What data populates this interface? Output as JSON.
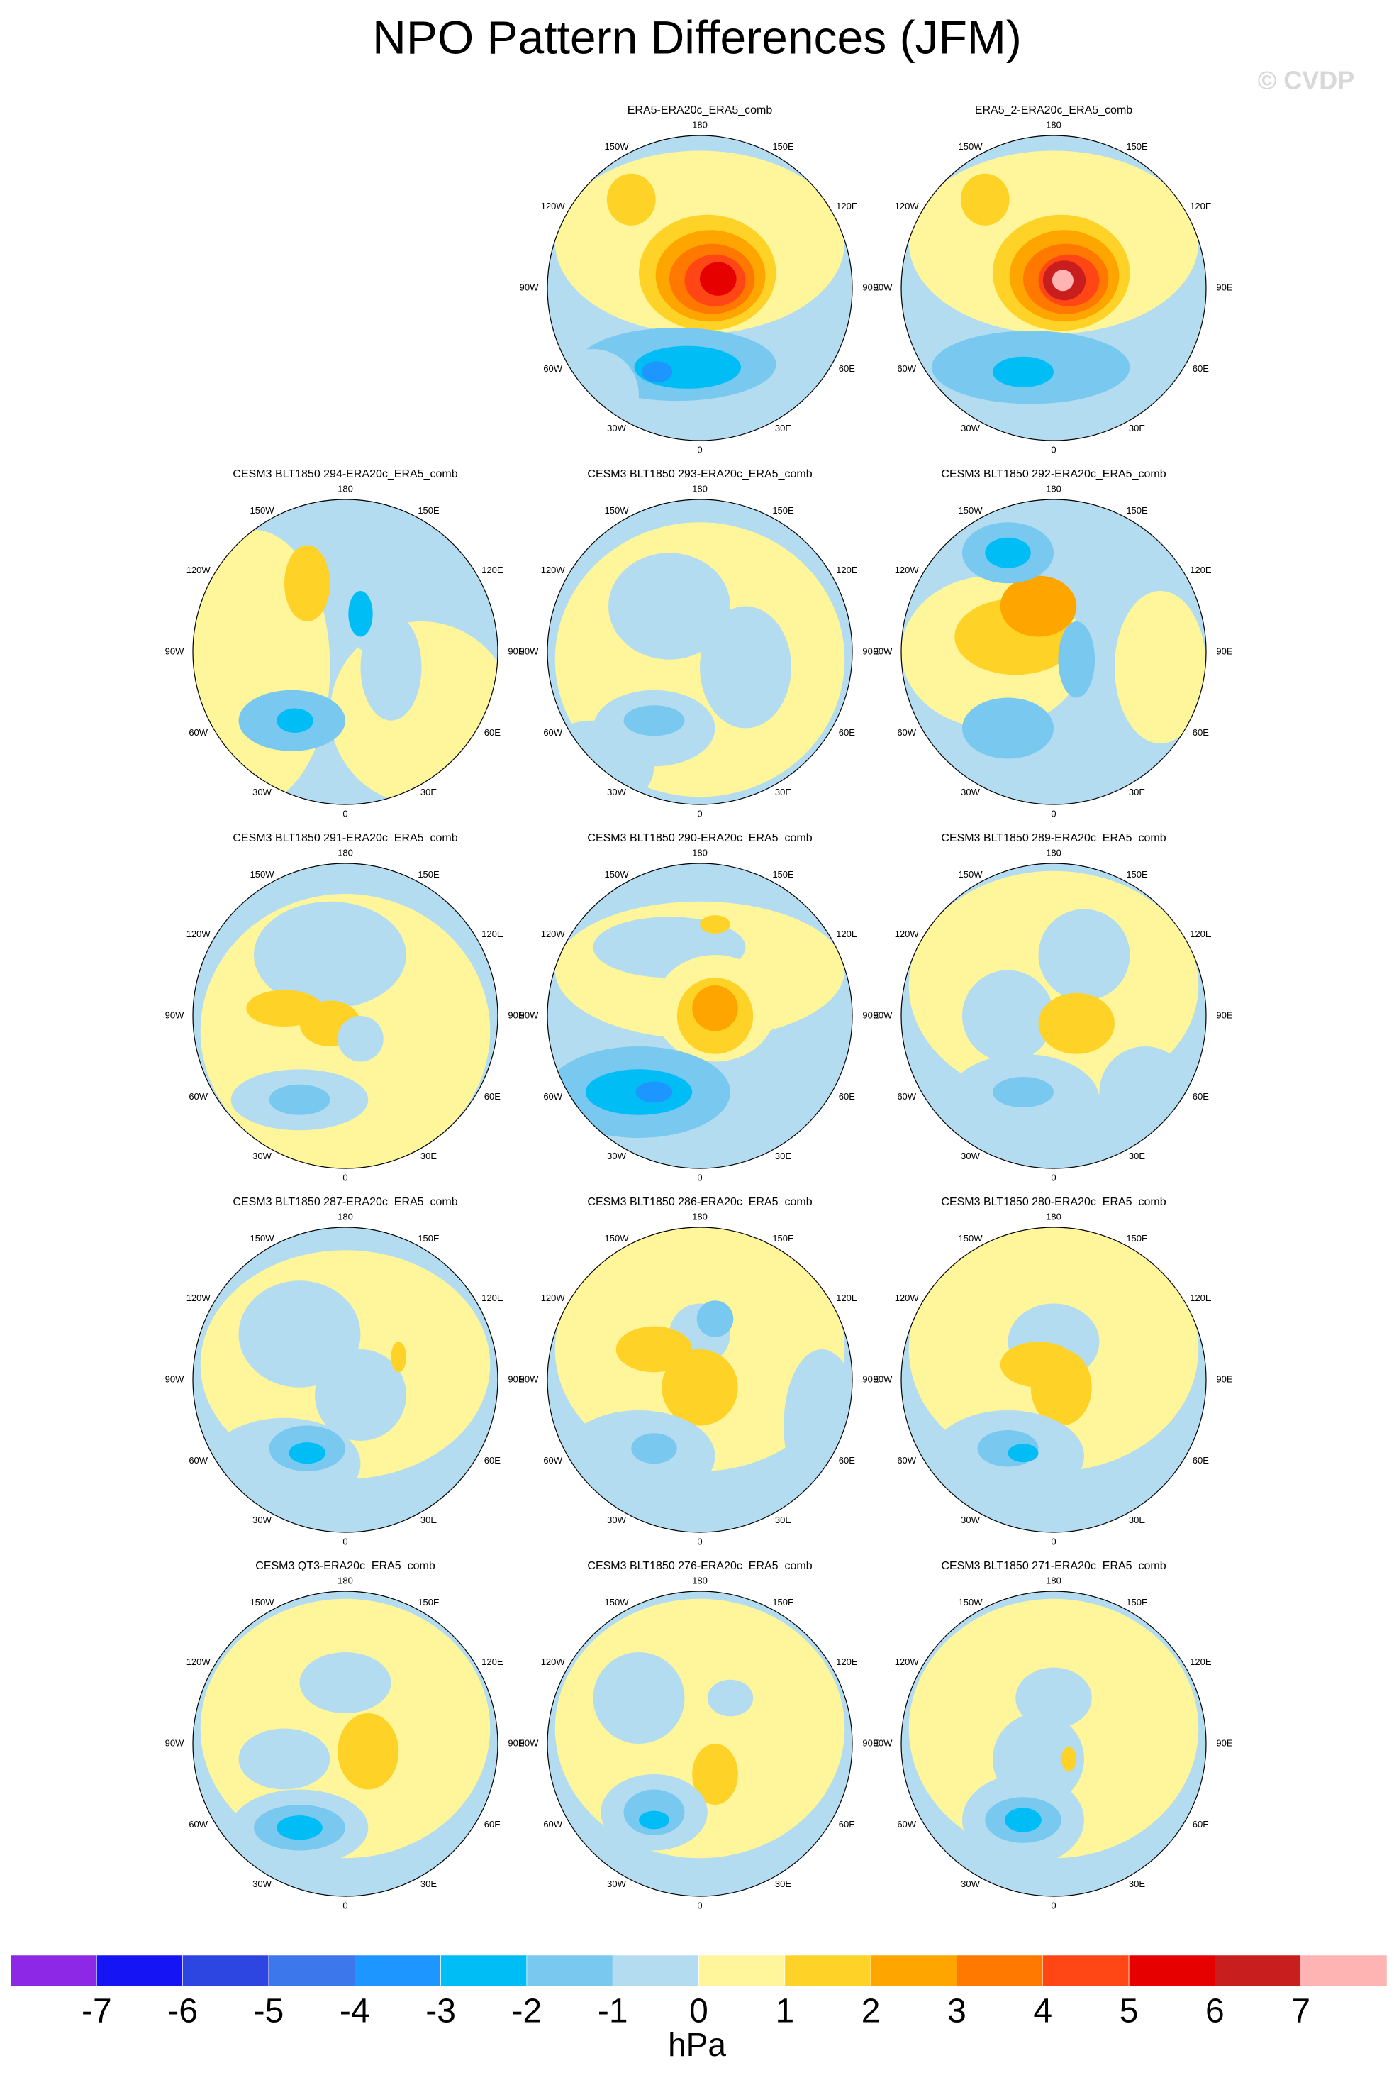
{
  "title": "NPO Pattern Differences (JFM)",
  "watermark": "© CVDP",
  "lon_labels": [
    "180",
    "150E",
    "120E",
    "90E",
    "60E",
    "30E",
    "0",
    "30W",
    "60W",
    "90W",
    "120W",
    "150W"
  ],
  "panels": [
    {
      "title": "ERA5-ERA20c_ERA5_comb"
    },
    {
      "title": "ERA5_2-ERA20c_ERA5_comb"
    },
    {
      "title": "CESM3 BLT1850 294-ERA20c_ERA5_comb"
    },
    {
      "title": "CESM3 BLT1850 293-ERA20c_ERA5_comb"
    },
    {
      "title": "CESM3 BLT1850 292-ERA20c_ERA5_comb"
    },
    {
      "title": "CESM3 BLT1850 291-ERA20c_ERA5_comb"
    },
    {
      "title": "CESM3 BLT1850 290-ERA20c_ERA5_comb"
    },
    {
      "title": "CESM3 BLT1850 289-ERA20c_ERA5_comb"
    },
    {
      "title": "CESM3 BLT1850 287-ERA20c_ERA5_comb"
    },
    {
      "title": "CESM3 BLT1850 286-ERA20c_ERA5_comb"
    },
    {
      "title": "CESM3 BLT1850 280-ERA20c_ERA5_comb"
    },
    {
      "title": "CESM3 QT3-ERA20c_ERA5_comb"
    },
    {
      "title": "CESM3 BLT1850 276-ERA20c_ERA5_comb"
    },
    {
      "title": "CESM3 BLT1850 271-ERA20c_ERA5_comb"
    }
  ],
  "colorbar": {
    "levels": [
      -7,
      -6,
      -5,
      -4,
      -3,
      -2,
      -1,
      0,
      1,
      2,
      3,
      4,
      5,
      6,
      7
    ],
    "colors": [
      "#8c28e6",
      "#1414f5",
      "#2d46e1",
      "#3c78eb",
      "#1e96ff",
      "#00bef5",
      "#78c8f0",
      "#b4dcf0",
      "#fff59b",
      "#ffd228",
      "#ffa500",
      "#ff7800",
      "#ff4614",
      "#e60000",
      "#c81e1e",
      "#ffb4b4"
    ],
    "label": "hPa"
  }
}
